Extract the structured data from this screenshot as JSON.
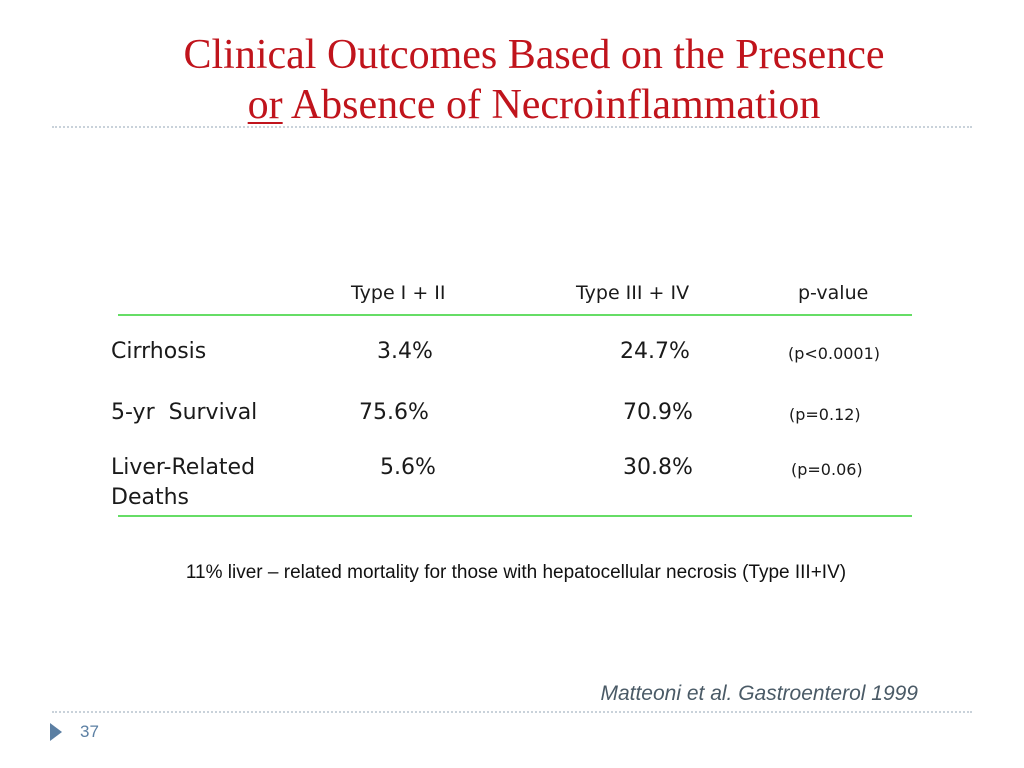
{
  "slide": {
    "title": {
      "line1": "Clinical Outcomes Based on the Presence",
      "line2_underlined": "or",
      "line2_rest": " Absence of Necroinflammation"
    },
    "title_color": "#c0141c",
    "table": {
      "columns": [
        "Type I + II",
        "Type III + IV",
        "p-value"
      ],
      "rows": [
        {
          "label": "Cirrhosis",
          "type_i_ii": "3.4%",
          "type_iii_iv": "24.7%",
          "p_value": "(p<0.0001)"
        },
        {
          "label": "5-yr  Survival",
          "type_i_ii": "75.6%",
          "type_iii_iv": "70.9%",
          "p_value": "(p=0.12)"
        },
        {
          "label_line1": "Liver-Related",
          "label_line2": "Deaths",
          "type_i_ii": "5.6%",
          "type_iii_iv": "30.8%",
          "p_value": "(p=0.06)"
        }
      ],
      "rule_color": "#66dd66"
    },
    "note": "11% liver – related mortality for those with hepatocellular necrosis (Type III+IV)",
    "citation": "Matteoni et al. Gastroenterol 1999",
    "page_number": "37"
  }
}
